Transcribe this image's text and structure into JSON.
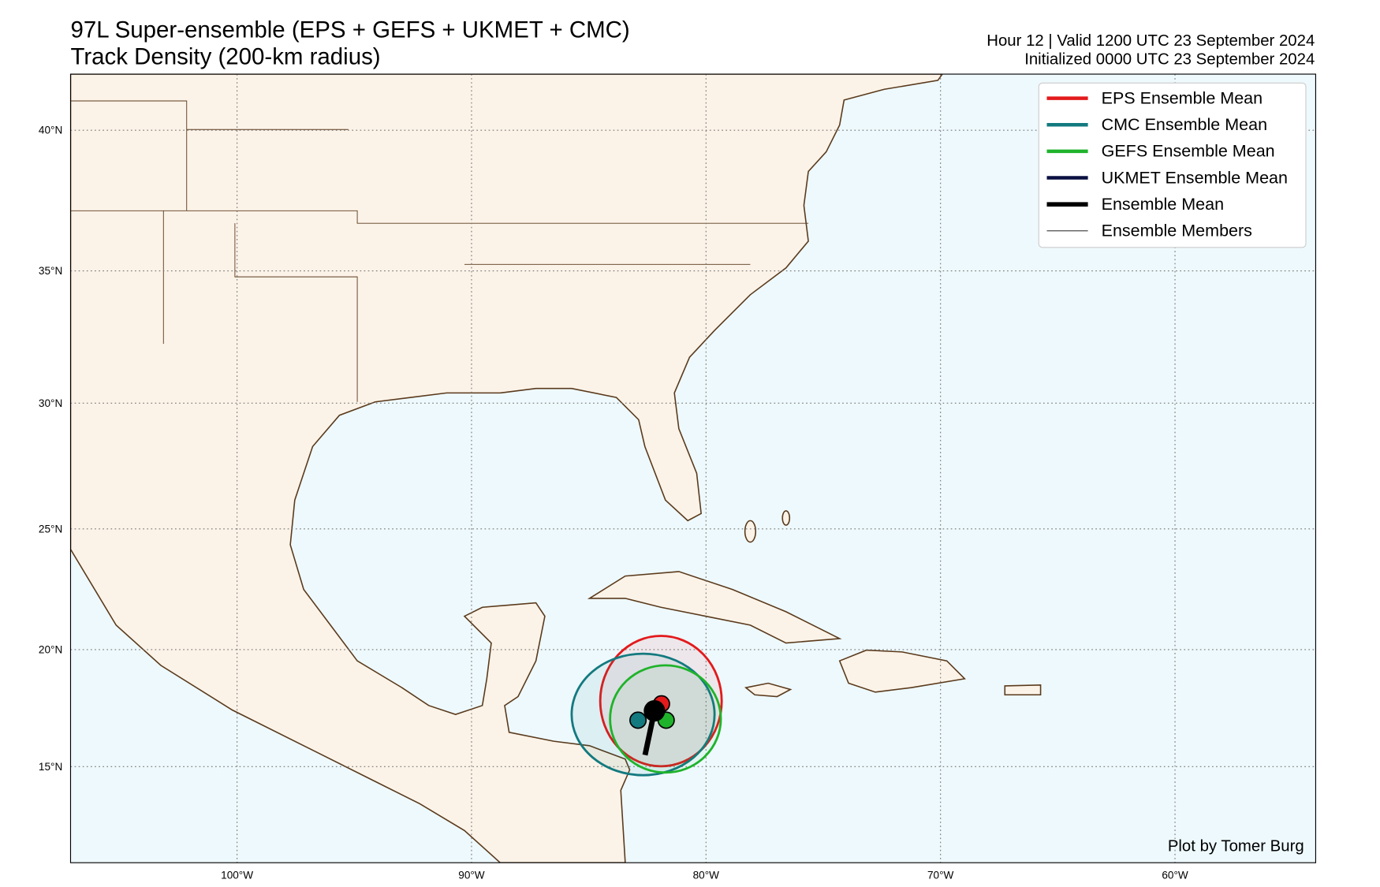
{
  "header": {
    "title": "97L Super-ensemble (EPS + GEFS + UKMET + CMC)",
    "subtitle": "Track Density (200-km radius)",
    "valid": "Hour 12 | Valid 1200 UTC 23 September 2024",
    "initialized": "Initialized 0000 UTC 23 September 2024"
  },
  "map": {
    "projection": "mercator",
    "lonlim": [
      -107.1,
      -54.0
    ],
    "latlim": [
      10.8,
      41.9
    ],
    "lon_ticks": [
      {
        "value": -100,
        "label": "100°W"
      },
      {
        "value": -90,
        "label": "90°W"
      },
      {
        "value": -80,
        "label": "80°W"
      },
      {
        "value": -70,
        "label": "70°W"
      },
      {
        "value": -60,
        "label": "60°W"
      }
    ],
    "lat_ticks": [
      {
        "value": 15,
        "label": "15°N"
      },
      {
        "value": 20,
        "label": "20°N"
      },
      {
        "value": 25,
        "label": "25°N"
      },
      {
        "value": 30,
        "label": "30°N"
      },
      {
        "value": 35,
        "label": "35°N"
      },
      {
        "value": 40,
        "label": "40°N"
      }
    ],
    "grid": true
  },
  "legend": {
    "corner": "upper right",
    "items": [
      {
        "label": "EPS Ensemble Mean",
        "color": "#e31a1c",
        "position": [
          -81.9,
          17.7
        ]
      },
      {
        "label": "CMC Ensemble Mean",
        "color": "#137a7f",
        "position": [
          -82.9,
          17.0
        ]
      },
      {
        "label": "GEFS Ensemble Mean",
        "color": "#1fb32b",
        "position": [
          -81.7,
          17.0
        ]
      },
      {
        "label": "UKMET Ensemble Mean",
        "color": "#0a1040",
        "position": [
          -82.2,
          17.4
        ]
      },
      {
        "label": "Ensemble Mean",
        "color": "#000000",
        "track": [
          [
            -82.2,
            17.4
          ],
          [
            -82.6,
            15.5
          ]
        ]
      },
      {
        "label": "Ensemble Members",
        "color": "#000000"
      }
    ]
  },
  "credit": "Plot by Tomer Burg"
}
